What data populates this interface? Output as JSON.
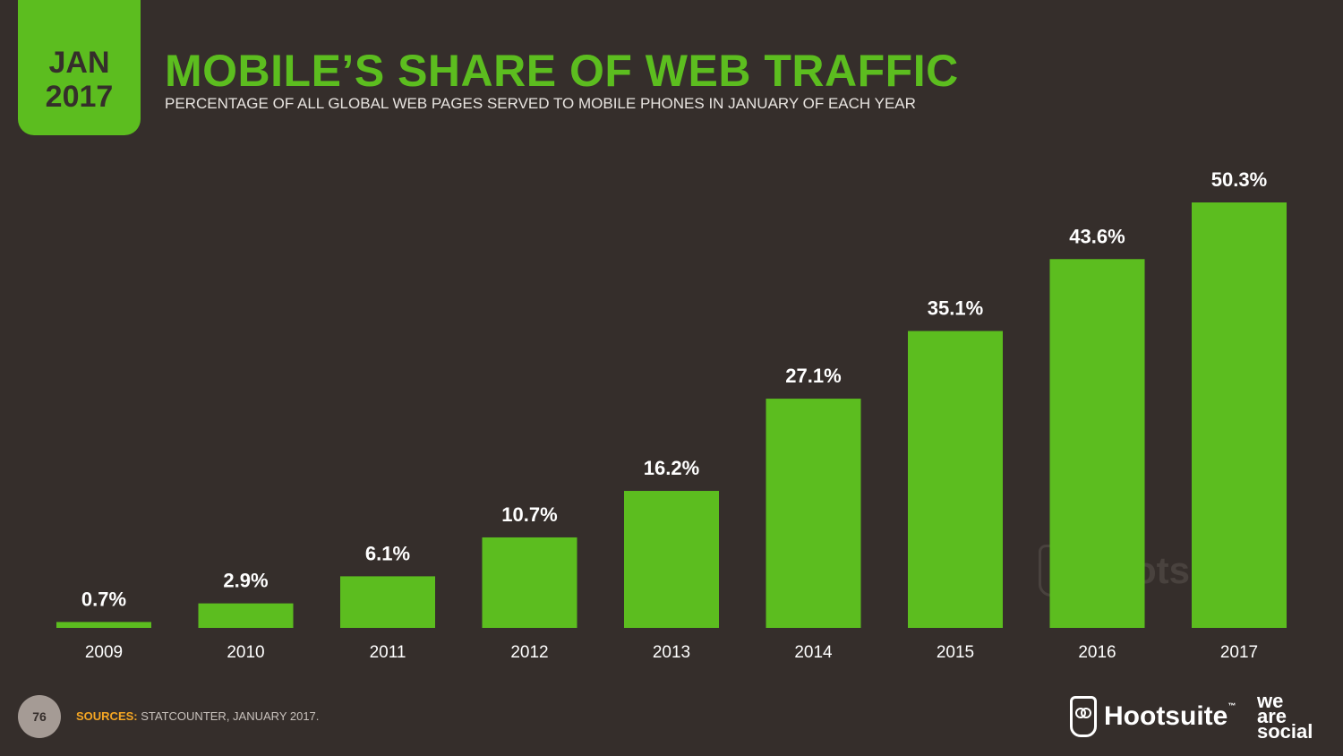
{
  "header": {
    "month": "JAN",
    "year": "2017",
    "title": "MOBILE’S SHARE OF WEB TRAFFIC",
    "subtitle": "PERCENTAGE OF ALL GLOBAL WEB PAGES SERVED TO MOBILE PHONES IN JANUARY OF EACH YEAR"
  },
  "chart_data": {
    "type": "bar",
    "title": "MOBILE’S SHARE OF WEB TRAFFIC",
    "categories": [
      "2009",
      "2010",
      "2011",
      "2012",
      "2013",
      "2014",
      "2015",
      "2016",
      "2017"
    ],
    "values": [
      0.7,
      2.9,
      6.1,
      10.7,
      16.2,
      27.1,
      35.1,
      43.6,
      50.3
    ],
    "labels": [
      "0.7%",
      "2.9%",
      "6.1%",
      "10.7%",
      "16.2%",
      "27.1%",
      "35.1%",
      "43.6%",
      "50.3%"
    ],
    "xlabel": "",
    "ylabel": "",
    "grid": false,
    "bar_color": "#5cbd1f"
  },
  "watermark": {
    "we_are_social": [
      "we",
      "are",
      "social"
    ],
    "hootsuite": "Hootsuite"
  },
  "footer": {
    "page_number": "76",
    "sources_label": "SOURCES:",
    "sources_text": "STATCOUNTER, JANUARY 2017.",
    "hootsuite_logo": "Hootsuite",
    "hootsuite_tm": "™",
    "we_are_social": [
      "we",
      "are",
      "social"
    ]
  },
  "colors": {
    "background": "#352e2b",
    "accent": "#5cbd1f",
    "sources_label": "#f5a623"
  }
}
